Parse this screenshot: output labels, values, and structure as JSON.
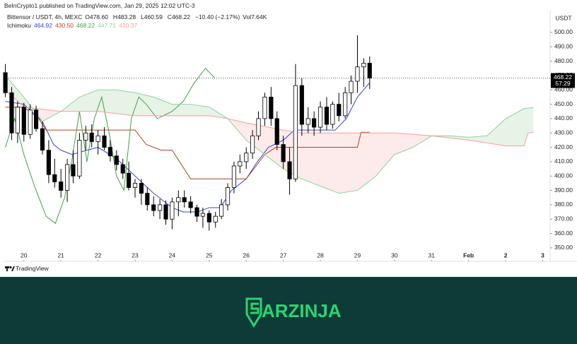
{
  "header": {
    "text": "BeInCrypto1 published on TradingView.com, Jan 29, 2025 12:02 UTC-3"
  },
  "chart_data": {
    "type": "candlestick",
    "symbol": "Bittensor / USDT, 4h, MEXC",
    "legend_items": [
      {
        "key": "O",
        "value": "478.60"
      },
      {
        "key": "H",
        "value": "483.28"
      },
      {
        "key": "L",
        "value": "460.59"
      },
      {
        "key": "C",
        "value": "468.22"
      }
    ],
    "change": "−10.40 (−2.17%)",
    "volume": {
      "key": "Vol",
      "value": "7.64K"
    },
    "indicator": "Ichimoku",
    "currency": "USDT",
    "last_price": 468.22,
    "countdown": "57:29",
    "xlim": [
      19.47,
      34.2
    ],
    "ylim": [
      340.6,
      515.2
    ],
    "xticks": [
      20,
      21,
      22,
      23,
      24,
      25,
      26,
      27,
      28,
      29,
      30,
      31,
      {
        "value": 32,
        "label": "Feb"
      },
      {
        "value": 33,
        "label": "2"
      },
      {
        "value": 34,
        "label": "3"
      }
    ],
    "yticks": [
      {
        "value": 350,
        "label": "350.00"
      },
      {
        "value": 360,
        "label": "360.00"
      },
      {
        "value": 370,
        "label": "370.00"
      },
      {
        "value": 380,
        "label": "380.00"
      },
      {
        "value": 390,
        "label": "390.00"
      },
      {
        "value": 400,
        "label": "400.00"
      },
      {
        "value": 410,
        "label": "410.00"
      },
      {
        "value": 420,
        "label": "420.00"
      },
      {
        "value": 430,
        "label": "430.00"
      },
      {
        "value": 440,
        "label": "440.00"
      },
      {
        "value": 450,
        "label": "450.00"
      },
      {
        "value": 460,
        "label": "460.00"
      },
      {
        "value": 470,
        "label": "470.00"
      },
      {
        "value": 480,
        "label": "480.00"
      },
      {
        "value": 490,
        "label": "490.00"
      },
      {
        "value": 500,
        "label": "500.00"
      }
    ],
    "up_color": "#ffffff",
    "down_color": "#000000",
    "x": [
      19.5,
      19.67,
      19.83,
      20,
      20.17,
      20.33,
      20.5,
      20.67,
      20.83,
      21,
      21.17,
      21.33,
      21.5,
      21.67,
      21.83,
      22,
      22.17,
      22.33,
      22.5,
      22.67,
      22.83,
      23,
      23.17,
      23.33,
      23.5,
      23.67,
      23.83,
      24,
      24.17,
      24.33,
      24.5,
      24.67,
      24.83,
      25,
      25.17,
      25.33,
      25.5,
      25.67,
      25.83,
      26,
      26.17,
      26.33,
      26.5,
      26.67,
      26.83,
      27,
      27.17,
      27.33,
      27.5,
      27.67,
      27.83,
      28,
      28.17,
      28.33,
      28.5,
      28.67,
      28.83,
      29,
      29.17,
      29.33
    ],
    "open": [
      472,
      458,
      430,
      448,
      429,
      446,
      433,
      418,
      401,
      396,
      390,
      408,
      400,
      425,
      430,
      424,
      428,
      420,
      414,
      408,
      402,
      392,
      395,
      388,
      380,
      376,
      380,
      370,
      382,
      385,
      382,
      378,
      372,
      374,
      368,
      372,
      380,
      392,
      407,
      410,
      416,
      428,
      440,
      455,
      440,
      422,
      410,
      398,
      463,
      436,
      440,
      434,
      448,
      436,
      450,
      442,
      458,
      466,
      476,
      478.6
    ],
    "high": [
      478,
      462,
      452,
      451,
      450,
      449,
      438,
      425,
      412,
      405,
      412,
      418,
      430,
      435,
      436,
      432,
      434,
      425,
      418,
      412,
      410,
      398,
      398,
      392,
      386,
      384,
      383,
      385,
      390,
      390,
      386,
      380,
      378,
      376,
      375,
      384,
      395,
      410,
      415,
      420,
      432,
      445,
      458,
      462,
      445,
      428,
      420,
      478,
      468,
      448,
      445,
      452,
      455,
      452,
      458,
      462,
      470,
      498,
      482,
      483.28
    ],
    "low": [
      455,
      425,
      423,
      424,
      426,
      431,
      415,
      395,
      392,
      385,
      382,
      395,
      398,
      418,
      420,
      415,
      418,
      410,
      404,
      398,
      390,
      385,
      380,
      376,
      372,
      370,
      366,
      363,
      372,
      378,
      374,
      368,
      364,
      362,
      364,
      370,
      376,
      388,
      402,
      405,
      412,
      425,
      435,
      435,
      418,
      405,
      387,
      396,
      428,
      430,
      428,
      430,
      432,
      433,
      438,
      440,
      450,
      458,
      462,
      460.59
    ],
    "close": [
      458,
      430,
      448,
      429,
      446,
      433,
      418,
      401,
      396,
      390,
      408,
      400,
      425,
      430,
      424,
      428,
      420,
      414,
      408,
      402,
      392,
      395,
      388,
      380,
      376,
      380,
      370,
      382,
      385,
      382,
      378,
      372,
      374,
      368,
      372,
      380,
      392,
      407,
      410,
      416,
      428,
      440,
      455,
      440,
      422,
      410,
      398,
      463,
      436,
      440,
      434,
      448,
      436,
      450,
      442,
      458,
      466,
      476,
      478.6,
      468.22
    ],
    "lines": [
      {
        "color": "#3346d3",
        "legend_value": "464.92",
        "x": [
          19.5,
          20,
          20.5,
          20.8,
          21,
          21.3,
          21.7,
          22,
          22.5,
          22.8,
          23,
          23.5,
          24,
          24.3,
          24.7,
          25,
          25.3,
          25.6,
          26,
          26.3,
          26.6,
          27,
          27.3,
          27.6,
          28,
          28.4,
          28.7,
          29,
          29.33
        ],
        "values": [
          452,
          450,
          438,
          422,
          418,
          415,
          418,
          420,
          412,
          405,
          400,
          388,
          378,
          375,
          375,
          378,
          378,
          390,
          398,
          410,
          420,
          425,
          432,
          432,
          432,
          432,
          440,
          455,
          464.92
        ]
      },
      {
        "color": "#a8461f",
        "legend_value": "430.50",
        "x": [
          19.5,
          20,
          20.4,
          20.6,
          21,
          22,
          22.5,
          23,
          23.3,
          23.7,
          24,
          24.5,
          24.7,
          25.5,
          26,
          26.5,
          26.8,
          27.2,
          27.5,
          28,
          28.5,
          29,
          29.1,
          29.33
        ],
        "values": [
          448,
          448,
          440,
          432,
          432,
          432,
          432,
          432,
          422,
          418,
          418,
          398,
          398,
          398,
          398,
          415,
          420,
          420,
          420,
          420,
          420,
          420,
          430.5,
          430.5
        ]
      },
      {
        "color": "#43a047",
        "legend_value": "468.22",
        "x": [
          19.5,
          19.75,
          20,
          20.3,
          20.6,
          20.85,
          21.1,
          21.3,
          21.5,
          21.7,
          21.9,
          22.1,
          22.3,
          22.5,
          22.7,
          22.9,
          23.1,
          23.3,
          23.6,
          24,
          24.3,
          24.6,
          24.9,
          25.15
        ],
        "values": [
          420,
          440,
          415,
          392,
          372,
          367,
          385,
          412,
          445,
          410,
          440,
          455,
          430,
          400,
          390,
          440,
          455,
          450,
          440,
          445,
          452,
          465,
          475,
          468.22
        ]
      },
      {
        "color": "#8fd19e",
        "legend_value": "447.71",
        "x": [
          19.5,
          20,
          20.5,
          21,
          21.5,
          22,
          22.5,
          23,
          23.5,
          24,
          24.5,
          25,
          25.5,
          26,
          26.5,
          27,
          27.5,
          28,
          28.5,
          29,
          29.5,
          30,
          30.5,
          31,
          31.5,
          32,
          32.5,
          33,
          33.5,
          33.75
        ],
        "values": [
          470,
          455,
          438,
          445,
          455,
          460,
          460,
          458,
          455,
          450,
          450,
          448,
          440,
          425,
          415,
          405,
          398,
          393,
          388,
          390,
          400,
          415,
          420,
          428,
          428,
          427,
          428,
          440,
          447,
          447.71
        ]
      },
      {
        "color": "#f4a09a",
        "legend_value": "430.37",
        "x": [
          19.5,
          20,
          21,
          22,
          23,
          24,
          25,
          25.5,
          26,
          27,
          27.5,
          28,
          29,
          30,
          31,
          32,
          33,
          33.5,
          33.6,
          33.75
        ],
        "values": [
          460,
          448,
          445,
          445,
          442,
          442,
          442,
          440,
          437,
          432,
          430,
          430,
          430,
          430,
          428,
          425,
          421,
          421,
          430,
          430.37
        ]
      }
    ]
  },
  "brand": {
    "tradingview": "TradingView",
    "footer": "ARZINJA"
  }
}
